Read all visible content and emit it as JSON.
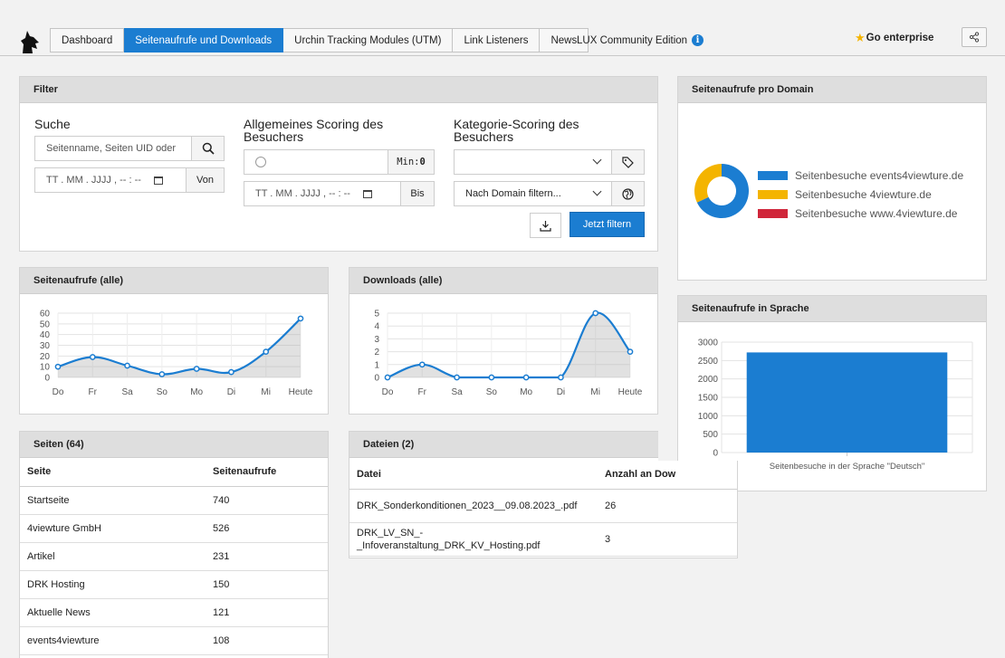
{
  "nav": {
    "tabs": [
      "Dashboard",
      "Seitenaufrufe und Downloads",
      "Urchin Tracking Modules (UTM)",
      "Link Listeners",
      "News"
    ],
    "active_tab": 1,
    "edition": "LUX Community Edition",
    "enterprise": "Go enterprise"
  },
  "filter": {
    "title": "Filter",
    "search_label": "Suche",
    "search_placeholder": "Seitenname, Seiten UID oder",
    "date_placeholder": "TT . MM . JJJJ ,  -- : --",
    "von": "Von",
    "bis": "Bis",
    "scoring_label": "Allgemeines Scoring des Besuchers",
    "min_label": "Min:",
    "min_value": "0",
    "category_label": "Kategorie-Scoring des Besuchers",
    "category_select": "",
    "domain_select": "Nach Domain filtern...",
    "submit": "Jetzt filtern"
  },
  "domain_panel": {
    "title": "Seitenaufrufe pro Domain",
    "legend": [
      {
        "label": "Seitenbesuche events4viewture.de",
        "color": "#1b7dd1",
        "value": 68
      },
      {
        "label": "Seitenbesuche 4viewture.de",
        "color": "#f4b400",
        "value": 32
      },
      {
        "label": "Seitenbesuche www.4viewture.de",
        "color": "#d0263a",
        "value": 0
      }
    ]
  },
  "pageviews_chart": {
    "title": "Seitenaufrufe (alle)",
    "chart_data": {
      "type": "line",
      "categories": [
        "Do",
        "Fr",
        "Sa",
        "So",
        "Mo",
        "Di",
        "Mi",
        "Heute"
      ],
      "values": [
        10,
        19,
        11,
        3,
        8,
        5,
        24,
        55
      ],
      "ylim": [
        0,
        60
      ],
      "yticks": [
        "0",
        "10",
        "20",
        "30",
        "40",
        "50",
        "60"
      ]
    }
  },
  "downloads_chart": {
    "title": "Downloads (alle)",
    "chart_data": {
      "type": "line",
      "categories": [
        "Do",
        "Fr",
        "Sa",
        "So",
        "Mo",
        "Di",
        "Mi",
        "Heute"
      ],
      "values": [
        0,
        1,
        0,
        0,
        0,
        0,
        5,
        2
      ],
      "ylim": [
        0,
        5
      ],
      "yticks": [
        "0",
        "1",
        "2",
        "3",
        "4",
        "5"
      ]
    }
  },
  "language_chart": {
    "title": "Seitenaufrufe in Sprache",
    "chart_data": {
      "type": "bar",
      "categories": [
        "Seitenbesuche in der Sprache \"Deutsch\""
      ],
      "values": [
        2720
      ],
      "ylim": [
        0,
        3000
      ],
      "yticks": [
        "0",
        "500",
        "1000",
        "1500",
        "2000",
        "2500",
        "3000"
      ]
    }
  },
  "pages": {
    "title": "Seiten (64)",
    "col_page": "Seite",
    "col_views": "Seitenaufrufe",
    "rows": [
      {
        "page": "Startseite",
        "views": "740"
      },
      {
        "page": "4viewture GmbH",
        "views": "526"
      },
      {
        "page": "Artikel",
        "views": "231"
      },
      {
        "page": "DRK Hosting",
        "views": "150"
      },
      {
        "page": "Aktuelle News",
        "views": "121"
      },
      {
        "page": "events4viewture",
        "views": "108"
      }
    ]
  },
  "files": {
    "title": "Dateien (2)",
    "col_file": "Datei",
    "col_count": "Anzahl an Dow",
    "rows": [
      {
        "file": "DRK_Sonderkonditionen_2023__09.08.2023_.pdf",
        "count": "26"
      },
      {
        "file": "DRK_LV_SN_-\n_Infoveranstaltung_DRK_KV_Hosting.pdf",
        "count": "3"
      }
    ]
  }
}
